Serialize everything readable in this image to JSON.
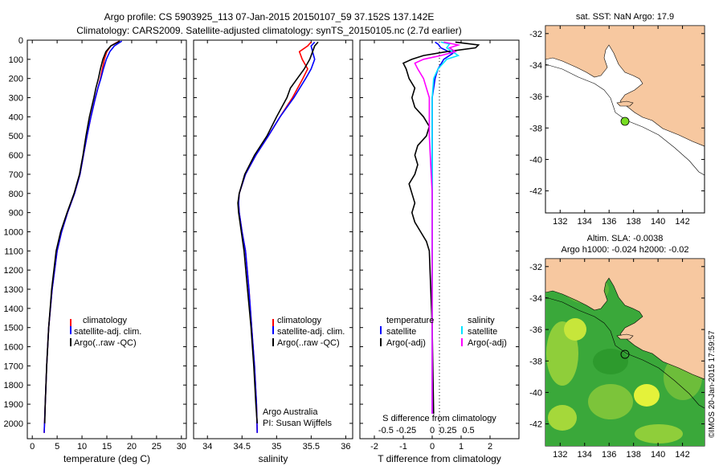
{
  "header": {
    "line1": "Argo profile: CS 5903925_113 07-Jan-2015 20150107_59 37.152S 137.142E",
    "line2": "Climatology: CARS2009. Satellite-adjusted climatology: synTS_20150105.nc (2.7d earlier)"
  },
  "colors": {
    "clim": "#ff0000",
    "sat": "#0000ff",
    "argo": "#000000",
    "sat_diff_s": "#00e5ff",
    "argo_diff_s": "#ff00ff",
    "land": "#f7c8a0",
    "float": "#77dd22"
  },
  "chart_data": [
    {
      "type": "line",
      "id": "temperature",
      "xlabel": "temperature (deg C)",
      "ylabel": "",
      "xlim": [
        -1,
        31
      ],
      "ylim": [
        0,
        2080
      ],
      "xticks": [
        0,
        5,
        10,
        15,
        20,
        25,
        30
      ],
      "yticks": [
        0,
        100,
        200,
        300,
        400,
        500,
        600,
        700,
        800,
        900,
        1000,
        1100,
        1200,
        1300,
        1400,
        1500,
        1600,
        1700,
        1800,
        1900,
        2000
      ],
      "legend": [
        "climatology",
        "satellite-adj. clim.",
        "Argo(..raw -QC)"
      ],
      "series": [
        {
          "name": "climatology",
          "color": "#ff0000",
          "depth": [
            2050,
            1900,
            1700,
            1500,
            1300,
            1100,
            1000,
            900,
            800,
            700,
            600,
            500,
            400,
            300,
            250,
            200,
            150,
            100,
            60,
            30,
            15,
            5
          ],
          "values": [
            2.4,
            2.6,
            2.9,
            3.3,
            4.0,
            5.0,
            5.9,
            7.1,
            8.5,
            9.6,
            10.3,
            11.0,
            11.8,
            12.7,
            13.2,
            13.7,
            14.1,
            14.5,
            15.0,
            15.8,
            16.8,
            17.5
          ]
        },
        {
          "name": "satellite-adj. clim.",
          "color": "#0000ff",
          "depth": [
            2050,
            1900,
            1700,
            1500,
            1300,
            1100,
            1000,
            900,
            800,
            700,
            600,
            500,
            400,
            300,
            250,
            200,
            150,
            100,
            60,
            30,
            15,
            5
          ],
          "values": [
            2.4,
            2.6,
            2.9,
            3.3,
            4.0,
            5.0,
            5.9,
            7.1,
            8.5,
            9.6,
            10.3,
            11.0,
            11.8,
            12.7,
            13.2,
            13.8,
            14.3,
            14.9,
            15.6,
            16.5,
            17.4,
            18.0
          ]
        },
        {
          "name": "Argo(..raw -QC)",
          "color": "#000000",
          "depth": [
            2000,
            1900,
            1700,
            1500,
            1300,
            1100,
            1000,
            900,
            800,
            700,
            600,
            500,
            400,
            300,
            250,
            200,
            150,
            100,
            60,
            30,
            15,
            5
          ],
          "values": [
            2.5,
            2.6,
            2.9,
            3.3,
            3.9,
            4.8,
            5.7,
            7.0,
            8.4,
            9.5,
            10.2,
            10.8,
            11.5,
            12.4,
            12.8,
            13.3,
            13.7,
            14.2,
            14.8,
            15.8,
            16.9,
            17.6
          ]
        }
      ]
    },
    {
      "type": "line",
      "id": "salinity",
      "xlabel": "salinity",
      "xlim": [
        33.8,
        36.1
      ],
      "ylim": [
        0,
        2080
      ],
      "xticks": [
        34,
        34.5,
        35,
        35.5,
        36
      ],
      "legend": [
        "climatology",
        "satellite-adj. clim.",
        "Argo(..raw -QC)"
      ],
      "annotation": [
        "Argo Australia",
        "PI: Susan Wijffels"
      ],
      "series": [
        {
          "name": "climatology",
          "color": "#ff0000",
          "depth": [
            2050,
            1900,
            1700,
            1500,
            1300,
            1100,
            1000,
            900,
            850,
            800,
            700,
            600,
            500,
            400,
            300,
            200,
            150,
            100,
            60,
            30,
            10
          ],
          "values": [
            34.72,
            34.71,
            34.68,
            34.64,
            34.6,
            34.55,
            34.5,
            34.46,
            34.45,
            34.46,
            34.55,
            34.7,
            34.88,
            35.05,
            35.23,
            35.38,
            35.45,
            35.37,
            35.33,
            35.45,
            35.5
          ]
        },
        {
          "name": "satellite-adj. clim.",
          "color": "#0000ff",
          "depth": [
            2050,
            1900,
            1700,
            1500,
            1300,
            1100,
            1000,
            900,
            850,
            800,
            700,
            600,
            500,
            400,
            300,
            200,
            150,
            100,
            60,
            30,
            10
          ],
          "values": [
            34.72,
            34.71,
            34.68,
            34.64,
            34.6,
            34.55,
            34.5,
            34.46,
            34.45,
            34.46,
            34.55,
            34.7,
            34.88,
            35.05,
            35.25,
            35.42,
            35.5,
            35.55,
            35.52,
            35.5,
            35.55
          ]
        },
        {
          "name": "Argo(..raw -QC)",
          "color": "#000000",
          "depth": [
            2000,
            1900,
            1700,
            1500,
            1300,
            1100,
            1000,
            900,
            850,
            800,
            700,
            600,
            500,
            400,
            300,
            250,
            200,
            150,
            100,
            60,
            30,
            10
          ],
          "values": [
            34.72,
            34.7,
            34.67,
            34.63,
            34.58,
            34.53,
            34.49,
            34.45,
            34.44,
            34.46,
            34.54,
            34.68,
            34.86,
            35.0,
            35.15,
            35.2,
            35.3,
            35.4,
            35.48,
            35.52,
            35.55,
            35.6
          ]
        }
      ]
    },
    {
      "type": "line",
      "id": "difference",
      "xlabel": "T difference from climatology",
      "top_label": "S difference from climatology",
      "xlim": [
        -2.5,
        3.0
      ],
      "ylim": [
        0,
        2080
      ],
      "xticks": [
        -2,
        -1,
        0,
        1,
        2
      ],
      "sticks": [
        {
          "label": "-0.5",
          "t": -1.6
        },
        {
          "label": "-0.25",
          "t": -0.9
        },
        {
          "label": "0",
          "t": 0
        },
        {
          "label": "0.25",
          "t": 0.55
        },
        {
          "label": "0.5",
          "t": 1.25
        }
      ],
      "legend_left": [
        "temperature",
        "satellite",
        "Argo(-adj)"
      ],
      "legend_right": [
        "salinity",
        "satellite",
        "Argo(-adj)"
      ],
      "series": [
        {
          "name": "T satellite",
          "color": "#0000ff",
          "depth": [
            1950,
            1500,
            1100,
            800,
            500,
            300,
            200,
            150,
            100,
            70,
            40,
            20,
            10
          ],
          "values": [
            0,
            0,
            0,
            0,
            0,
            0,
            0.1,
            0.2,
            0.4,
            0.7,
            0.3,
            0.2,
            0.1
          ]
        },
        {
          "name": "T Argo(-adj)",
          "color": "#000000",
          "depth": [
            1950,
            1500,
            1100,
            1050,
            1000,
            950,
            900,
            850,
            800,
            750,
            700,
            650,
            600,
            550,
            500,
            450,
            400,
            350,
            300,
            250,
            200,
            150,
            120,
            100,
            80,
            60,
            40,
            25,
            10
          ],
          "values": [
            0.05,
            0,
            -0.1,
            -0.2,
            -0.4,
            -0.6,
            -0.7,
            -0.6,
            -0.7,
            -0.8,
            -0.6,
            -0.5,
            -0.6,
            -0.5,
            -0.2,
            -0.1,
            -0.3,
            -0.6,
            -0.7,
            -0.6,
            -0.8,
            -0.9,
            -1.0,
            -0.7,
            -0.3,
            0.5,
            1.5,
            1.6,
            0.8
          ]
        },
        {
          "name": "S satellite",
          "color": "#00e5ff",
          "depth": [
            1950,
            1500,
            1100,
            800,
            500,
            300,
            200,
            150,
            100,
            80,
            60,
            40,
            20,
            10
          ],
          "values": [
            0,
            0,
            0,
            0,
            0,
            0,
            0.05,
            0.2,
            0.5,
            0.9,
            0.7,
            0.5,
            0.6,
            0.3
          ]
        },
        {
          "name": "S Argo(-adj)",
          "color": "#ff00ff",
          "depth": [
            1950,
            1500,
            1100,
            800,
            500,
            300,
            250,
            200,
            150,
            120,
            100,
            80,
            60,
            40,
            25,
            10
          ],
          "values": [
            0,
            0,
            0,
            0,
            -0.1,
            -0.1,
            -0.2,
            -0.3,
            -0.5,
            -0.6,
            -0.3,
            0.3,
            0.8,
            0.6,
            0.9,
            0.4
          ]
        }
      ]
    },
    {
      "type": "map",
      "id": "sst-map",
      "title": "sat. SST: NaN Argo: 17.9",
      "xlim": [
        130.8,
        143.8
      ],
      "ylim": [
        -43.4,
        -31.5
      ],
      "xticks": [
        132,
        134,
        136,
        138,
        140,
        142
      ],
      "yticks": [
        -32,
        -34,
        -36,
        -38,
        -40,
        -42
      ],
      "float": {
        "lon": 137.142,
        "lat": -37.152
      }
    },
    {
      "type": "map",
      "id": "sla-map",
      "title_lines": [
        "Altim. SLA: -0.0038",
        "Argo h1000: -0.024 h2000: -0.02"
      ],
      "xlim": [
        130.8,
        143.8
      ],
      "ylim": [
        -43.4,
        -31.5
      ],
      "xticks": [
        132,
        134,
        136,
        138,
        140,
        142
      ],
      "yticks": [
        -32,
        -34,
        -36,
        -38,
        -40,
        -42
      ],
      "float": {
        "lon": 137.142,
        "lat": -37.152
      },
      "credit": "©IMOS 20-Jan-2015 17:59:57"
    }
  ]
}
